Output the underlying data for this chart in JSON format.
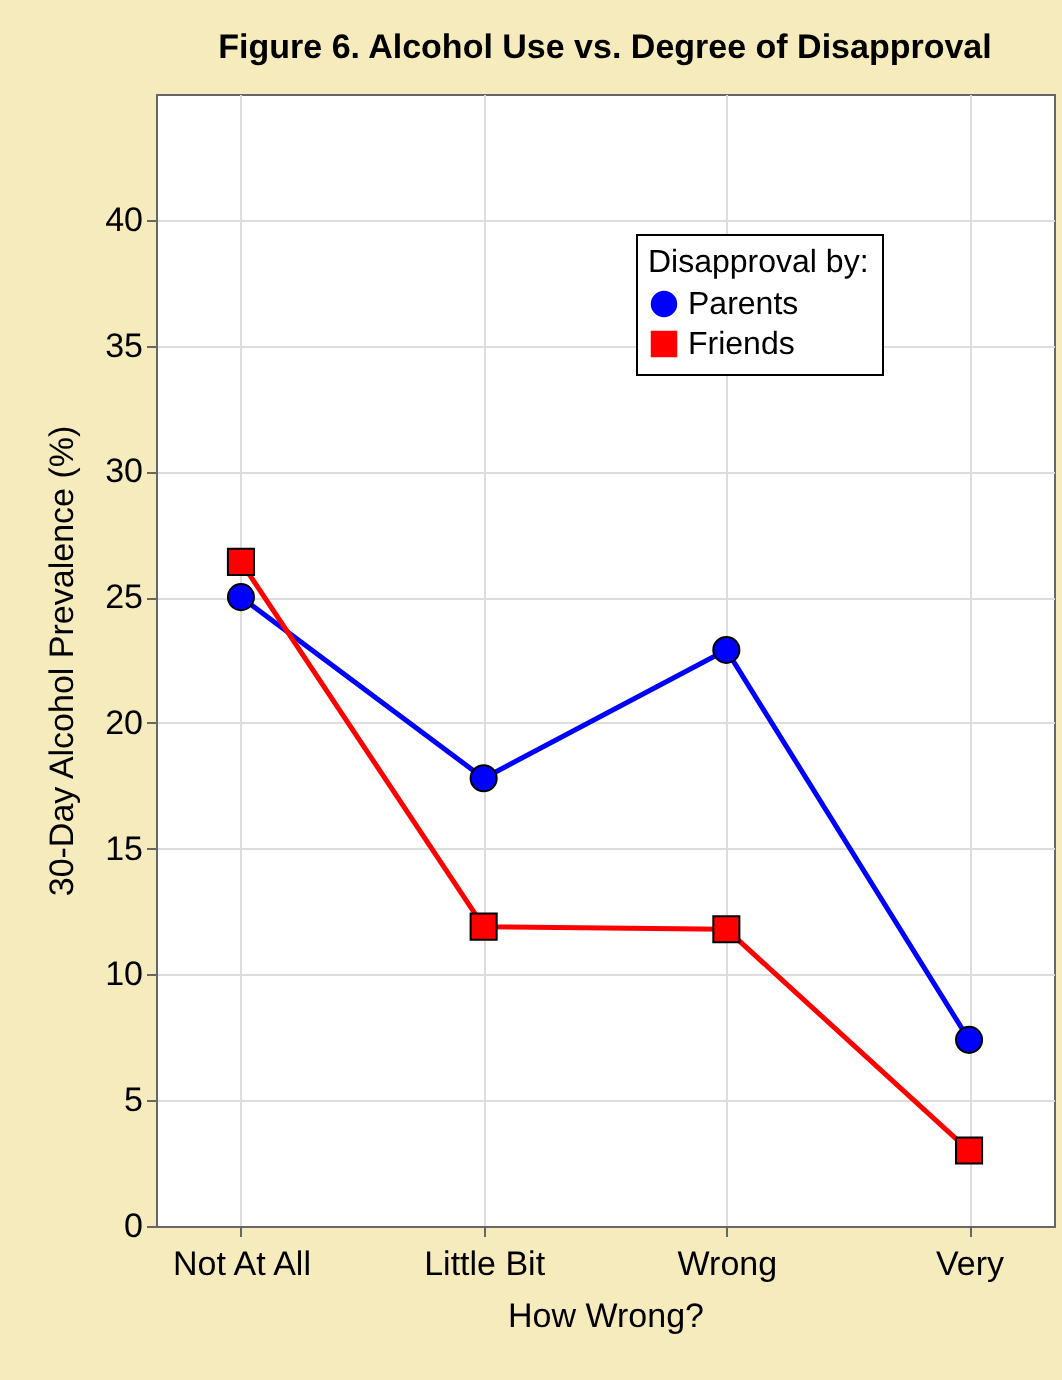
{
  "chart_data": {
    "type": "line",
    "title": "Figure 6.   Alcohol Use vs. Degree of Disapproval",
    "xlabel": "How Wrong?",
    "ylabel": "30-Day Alcohol Prevalence (%)",
    "legend_title": "Disapproval by:",
    "categories": [
      "Not At All",
      "Little Bit",
      "Wrong",
      "Very"
    ],
    "series": [
      {
        "name": "Parents",
        "color": "#0000ff",
        "marker": "circle",
        "values": [
          25.0,
          17.8,
          22.9,
          7.4
        ]
      },
      {
        "name": "Friends",
        "color": "#ff0000",
        "marker": "square",
        "values": [
          26.4,
          11.9,
          11.8,
          3.0
        ]
      }
    ],
    "ylim": [
      0,
      45
    ],
    "yticks": [
      0,
      5,
      10,
      15,
      20,
      25,
      30,
      35,
      40
    ],
    "grid": true,
    "legend": "top right",
    "line_style": "solid"
  }
}
